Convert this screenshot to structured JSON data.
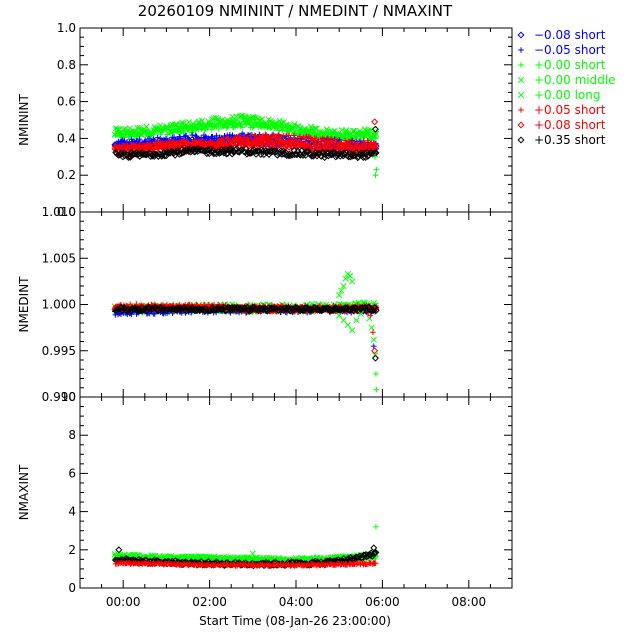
{
  "chart_data": {
    "type": "scatter",
    "title": "20260109 NMININT / NMEDINT / NMAXINT",
    "xlabel": "Start Time (08-Jan-26 23:00:00)",
    "x_tick_labels": [
      "00:00",
      "02:00",
      "04:00",
      "06:00",
      "08:00"
    ],
    "x_tick_hours": [
      1,
      3,
      5,
      7,
      9
    ],
    "x_range_hours": [
      0,
      10
    ],
    "data_hours_range": [
      0.8,
      6.85
    ],
    "legend": [
      {
        "label": "−0.08 short",
        "marker": "diamond",
        "color": "#0000ff",
        "text_color": "#0000ff"
      },
      {
        "label": "−0.05 short",
        "marker": "plus",
        "color": "#0000ff",
        "text_color": "#0000ff"
      },
      {
        "label": "+0.00 short",
        "marker": "plus",
        "color": "#00ff00",
        "text_color": "#00ff00"
      },
      {
        "label": "+0.00 middle",
        "marker": "x",
        "color": "#00ff00",
        "text_color": "#00ff00"
      },
      {
        "label": "+0.00 long",
        "marker": "x",
        "color": "#00ff00",
        "text_color": "#00ff00"
      },
      {
        "label": "+0.05 short",
        "marker": "plus",
        "color": "#ff0000",
        "text_color": "#ff0000"
      },
      {
        "label": "+0.08 short",
        "marker": "diamond",
        "color": "#ff0000",
        "text_color": "#ff0000"
      },
      {
        "label": "+0.35 short",
        "marker": "diamond",
        "color": "#000000",
        "text_color": "#000000"
      }
    ],
    "panels": [
      {
        "ylabel": "NMININT",
        "ylim": [
          0.0,
          1.0
        ],
        "yticks": [
          "0.0",
          "0.2",
          "0.4",
          "0.6",
          "0.8",
          "1.0"
        ],
        "yvals": [
          0.0,
          0.2,
          0.4,
          0.6,
          0.8,
          1.0
        ],
        "series": [
          {
            "color": "#00ff00",
            "marker": "x",
            "level": [
              0.43,
              0.44,
              0.45,
              0.47,
              0.49,
              0.5,
              0.48,
              0.45,
              0.43,
              0.42,
              0.43
            ],
            "spread": 0.025
          },
          {
            "color": "#00ff00",
            "marker": "plus",
            "level": [
              0.42,
              0.43,
              0.44,
              0.45,
              0.47,
              0.48,
              0.47,
              0.44,
              0.42,
              0.41,
              0.42
            ],
            "spread": 0.02
          },
          {
            "color": "#0000ff",
            "marker": "plus",
            "level": [
              0.37,
              0.38,
              0.39,
              0.4,
              0.4,
              0.41,
              0.4,
              0.39,
              0.38,
              0.37,
              0.37
            ],
            "spread": 0.02
          },
          {
            "color": "#0000ff",
            "marker": "diamond",
            "level": [
              0.35,
              0.36,
              0.37,
              0.38,
              0.38,
              0.39,
              0.38,
              0.37,
              0.36,
              0.35,
              0.35
            ],
            "spread": 0.02
          },
          {
            "color": "#ff0000",
            "marker": "plus",
            "level": [
              0.34,
              0.35,
              0.36,
              0.37,
              0.38,
              0.39,
              0.4,
              0.39,
              0.38,
              0.37,
              0.36
            ],
            "spread": 0.025
          },
          {
            "color": "#ff0000",
            "marker": "diamond",
            "level": [
              0.33,
              0.34,
              0.35,
              0.36,
              0.37,
              0.37,
              0.37,
              0.36,
              0.35,
              0.34,
              0.34
            ],
            "spread": 0.025
          },
          {
            "color": "#000000",
            "marker": "diamond",
            "level": [
              0.31,
              0.31,
              0.32,
              0.33,
              0.33,
              0.33,
              0.32,
              0.32,
              0.31,
              0.31,
              0.31
            ],
            "spread": 0.015
          }
        ],
        "outliers": [
          {
            "x": 6.82,
            "y": 0.49,
            "color": "#ff0000",
            "marker": "diamond"
          },
          {
            "x": 6.84,
            "y": 0.45,
            "color": "#000000",
            "marker": "diamond"
          },
          {
            "x": 6.85,
            "y": 0.4,
            "color": "#00ff00",
            "marker": "plus"
          },
          {
            "x": 6.83,
            "y": 0.3,
            "color": "#00ff00",
            "marker": "plus"
          },
          {
            "x": 6.84,
            "y": 0.2,
            "color": "#00ff00",
            "marker": "plus"
          },
          {
            "x": 6.86,
            "y": 0.23,
            "color": "#00ff00",
            "marker": "plus"
          }
        ]
      },
      {
        "ylabel": "NMEDINT",
        "ylim": [
          0.99,
          1.01
        ],
        "yticks": [
          "0.990",
          "0.995",
          "1.000",
          "1.005",
          "1.010"
        ],
        "yvals": [
          0.99,
          0.995,
          1.0,
          1.005,
          1.01
        ],
        "series": [
          {
            "color": "#00ff00",
            "marker": "x",
            "level": [
              0.9995,
              0.9995,
              0.9995,
              0.9996,
              0.9996,
              0.9996,
              0.9996,
              0.9996,
              0.9997,
              0.9998,
              0.9998
            ],
            "spread": 0.0004
          },
          {
            "color": "#00ff00",
            "marker": "plus",
            "level": [
              0.9993,
              0.9994,
              0.9994,
              0.9995,
              0.9995,
              0.9995,
              0.9995,
              0.9995,
              0.9995,
              0.9996,
              0.9996
            ],
            "spread": 0.0003
          },
          {
            "color": "#0000ff",
            "marker": "plus",
            "level": [
              0.9991,
              0.9992,
              0.9993,
              0.9994,
              0.9994,
              0.9994,
              0.9994,
              0.9994,
              0.9994,
              0.9994,
              0.9994
            ],
            "spread": 0.0003
          },
          {
            "color": "#ff0000",
            "marker": "plus",
            "level": [
              0.9998,
              0.9998,
              0.9997,
              0.9997,
              0.9997,
              0.9996,
              0.9996,
              0.9996,
              0.9996,
              0.9996,
              0.9996
            ],
            "spread": 0.0003
          },
          {
            "color": "#ff0000",
            "marker": "diamond",
            "level": [
              0.9996,
              0.9996,
              0.9996,
              0.9996,
              0.9996,
              0.9995,
              0.9995,
              0.9995,
              0.9995,
              0.9995,
              0.9995
            ],
            "spread": 0.0002
          },
          {
            "color": "#000000",
            "marker": "diamond",
            "level": [
              0.9995,
              0.9995,
              0.9995,
              0.9995,
              0.9995,
              0.9995,
              0.9995,
              0.9995,
              0.9995,
              0.9995,
              0.9995
            ],
            "spread": 0.0002
          }
        ],
        "outliers": [
          {
            "x": 6.0,
            "y": 1.001,
            "color": "#00ff00",
            "marker": "x"
          },
          {
            "x": 6.05,
            "y": 1.0015,
            "color": "#00ff00",
            "marker": "x"
          },
          {
            "x": 6.1,
            "y": 1.002,
            "color": "#00ff00",
            "marker": "x"
          },
          {
            "x": 6.15,
            "y": 1.0028,
            "color": "#00ff00",
            "marker": "x"
          },
          {
            "x": 6.2,
            "y": 1.0033,
            "color": "#00ff00",
            "marker": "x"
          },
          {
            "x": 6.25,
            "y": 1.0031,
            "color": "#00ff00",
            "marker": "x"
          },
          {
            "x": 6.3,
            "y": 1.0025,
            "color": "#00ff00",
            "marker": "x"
          },
          {
            "x": 6.0,
            "y": 0.9988,
            "color": "#00ff00",
            "marker": "x"
          },
          {
            "x": 6.1,
            "y": 0.9983,
            "color": "#00ff00",
            "marker": "x"
          },
          {
            "x": 6.2,
            "y": 0.9978,
            "color": "#00ff00",
            "marker": "x"
          },
          {
            "x": 6.3,
            "y": 0.9972,
            "color": "#00ff00",
            "marker": "x"
          },
          {
            "x": 6.4,
            "y": 0.9983,
            "color": "#00ff00",
            "marker": "x"
          },
          {
            "x": 6.5,
            "y": 0.999,
            "color": "#00ff00",
            "marker": "x"
          },
          {
            "x": 6.7,
            "y": 0.9985,
            "color": "#00ff00",
            "marker": "x"
          },
          {
            "x": 6.75,
            "y": 0.9975,
            "color": "#00ff00",
            "marker": "x"
          },
          {
            "x": 6.8,
            "y": 0.9962,
            "color": "#00ff00",
            "marker": "x"
          },
          {
            "x": 6.83,
            "y": 0.9945,
            "color": "#00ff00",
            "marker": "x"
          },
          {
            "x": 6.85,
            "y": 0.9925,
            "color": "#00ff00",
            "marker": "plus"
          },
          {
            "x": 6.86,
            "y": 0.9908,
            "color": "#00ff00",
            "marker": "plus"
          },
          {
            "x": 6.72,
            "y": 0.9988,
            "color": "#ff0000",
            "marker": "plus"
          },
          {
            "x": 6.78,
            "y": 0.997,
            "color": "#ff0000",
            "marker": "plus"
          },
          {
            "x": 6.82,
            "y": 0.995,
            "color": "#ff0000",
            "marker": "diamond"
          },
          {
            "x": 6.84,
            "y": 0.9942,
            "color": "#000000",
            "marker": "diamond"
          },
          {
            "x": 6.8,
            "y": 0.9955,
            "color": "#0000ff",
            "marker": "plus"
          }
        ]
      },
      {
        "ylabel": "NMAXINT",
        "ylim": [
          0,
          10
        ],
        "yticks": [
          "0",
          "2",
          "4",
          "6",
          "8",
          "10"
        ],
        "yvals": [
          0,
          2,
          4,
          6,
          8,
          10
        ],
        "series": [
          {
            "color": "#00ff00",
            "marker": "x",
            "level": [
              1.7,
              1.65,
              1.6,
              1.58,
              1.55,
              1.52,
              1.5,
              1.5,
              1.52,
              1.6,
              1.75
            ],
            "spread": 0.08
          },
          {
            "color": "#00ff00",
            "marker": "plus",
            "level": [
              1.55,
              1.52,
              1.5,
              1.48,
              1.45,
              1.42,
              1.42,
              1.42,
              1.45,
              1.5,
              1.6
            ],
            "spread": 0.07
          },
          {
            "color": "#000000",
            "marker": "diamond",
            "level": [
              1.5,
              1.4,
              1.35,
              1.3,
              1.28,
              1.26,
              1.26,
              1.28,
              1.32,
              1.5,
              1.8
            ],
            "spread": 0.1
          },
          {
            "color": "#ff0000",
            "marker": "plus",
            "level": [
              1.3,
              1.28,
              1.25,
              1.22,
              1.2,
              1.2,
              1.2,
              1.2,
              1.22,
              1.25,
              1.3
            ],
            "spread": 0.05
          }
        ],
        "outliers": [
          {
            "x": 6.85,
            "y": 3.2,
            "color": "#00ff00",
            "marker": "plus"
          },
          {
            "x": 0.9,
            "y": 2.0,
            "color": "#000000",
            "marker": "diamond"
          },
          {
            "x": 4.0,
            "y": 1.8,
            "color": "#00ff00",
            "marker": "x"
          },
          {
            "x": 6.8,
            "y": 2.1,
            "color": "#000000",
            "marker": "diamond"
          }
        ]
      }
    ]
  }
}
